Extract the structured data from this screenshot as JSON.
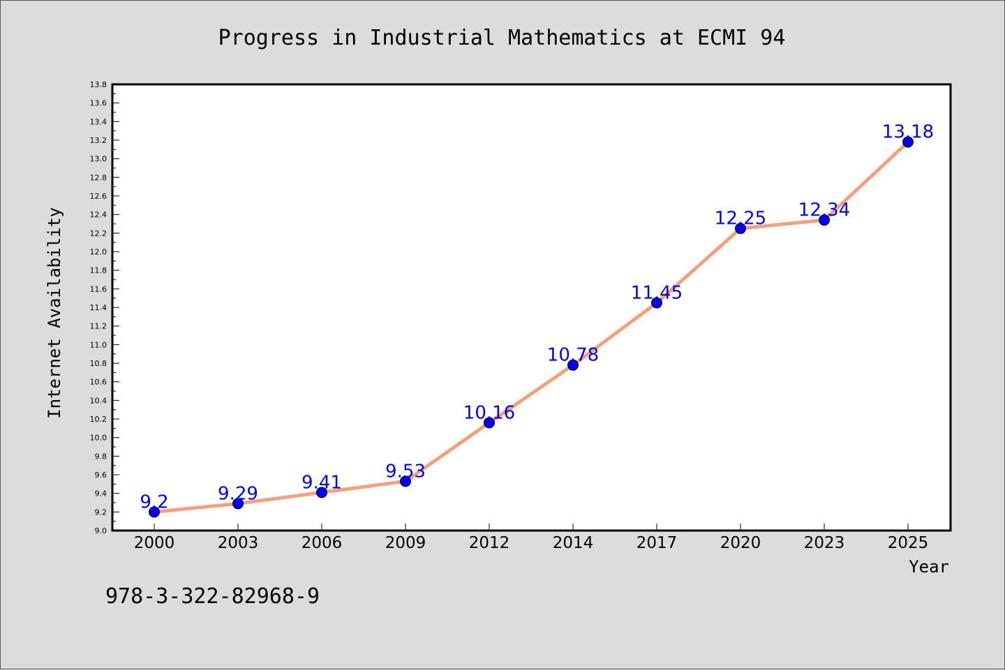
{
  "chart_data": {
    "type": "line",
    "title": "Progress in Industrial Mathematics at ECMI 94",
    "xlabel": "Year",
    "ylabel": "Internet Availability",
    "categories": [
      "2000",
      "2003",
      "2006",
      "2009",
      "2012",
      "2014",
      "2017",
      "2020",
      "2023",
      "2025"
    ],
    "series": [
      {
        "values": [
          9.2,
          9.29,
          9.41,
          9.53,
          10.16,
          10.78,
          11.45,
          12.25,
          12.34,
          13.18
        ],
        "data_labels": [
          "9.2",
          "9.29",
          "9.41",
          "9.53",
          "10.16",
          "10.78",
          "11.45",
          "12.25",
          "12.34",
          "13.18"
        ],
        "line_color": "#f4a07c",
        "marker_color": "#0000ee"
      }
    ],
    "ylim": [
      9.0,
      13.8
    ],
    "yticks": [
      "9.0",
      "9.2",
      "9.4",
      "9.6",
      "9.8",
      "10.0",
      "10.2",
      "10.4",
      "10.6",
      "10.8",
      "11.0",
      "11.2",
      "11.4",
      "11.6",
      "11.8",
      "12.0",
      "12.2",
      "12.4",
      "12.6",
      "12.8",
      "13.0",
      "13.2",
      "13.4",
      "13.6",
      "13.8"
    ],
    "grid": false,
    "legend": "none"
  },
  "footer": {
    "isbn": "978-3-322-82968-9"
  },
  "colors": {
    "background": "#dcdcdc",
    "plot_area": "#ffffff",
    "line": "#f4a07c",
    "marker": "#0000ee",
    "label": "#0000ee"
  }
}
